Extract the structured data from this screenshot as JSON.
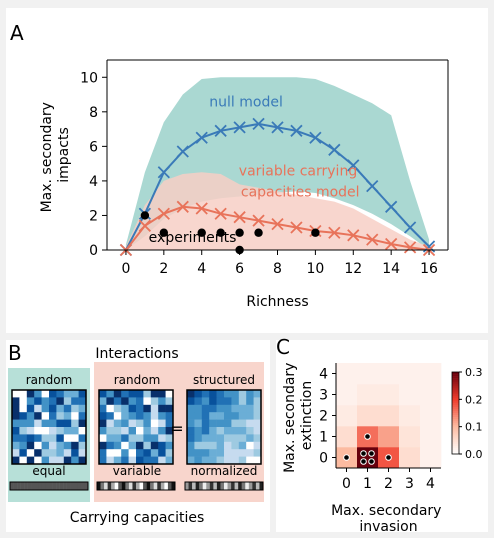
{
  "panels": {
    "a": "A",
    "b": "B",
    "c": "C"
  },
  "chart_data": [
    {
      "type": "line",
      "panel": "A",
      "xlabel": "Richness",
      "ylabel": "Max. secondary impacts",
      "ylabel_lines": [
        "Max. secondary",
        "impacts"
      ],
      "xlim": [
        -1,
        17
      ],
      "ylim": [
        0,
        11
      ],
      "xticks": [
        0,
        2,
        4,
        6,
        8,
        10,
        12,
        14,
        16
      ],
      "yticks": [
        0,
        2,
        4,
        6,
        8,
        10
      ],
      "grid": false,
      "series": [
        {
          "name": "null model",
          "color": "#3a7ab8",
          "band_color": "#aad8d2",
          "x": [
            0,
            1,
            2,
            3,
            4,
            5,
            6,
            7,
            8,
            9,
            10,
            11,
            12,
            13,
            14,
            15,
            16
          ],
          "mean": [
            0,
            2.1,
            4.5,
            5.7,
            6.5,
            6.9,
            7.1,
            7.3,
            7.1,
            6.9,
            6.5,
            5.8,
            4.9,
            3.7,
            2.5,
            1.3,
            0.2
          ],
          "lower": [
            0,
            0.8,
            1.8,
            2.4,
            2.8,
            3.0,
            3.1,
            3.2,
            3.3,
            3.4,
            3.3,
            3.0,
            2.6,
            2.1,
            1.5,
            0.8,
            0
          ],
          "upper": [
            0.3,
            4.5,
            7.4,
            9.0,
            9.9,
            10.0,
            10.0,
            10.0,
            10.0,
            10.0,
            9.9,
            9.5,
            9.0,
            8.5,
            7.8,
            4.0,
            0.6
          ]
        },
        {
          "name": "variable carrying capacities model",
          "name_lines": [
            "variable carrying",
            "capacities model"
          ],
          "color": "#e8735a",
          "band_color": "#f7cfc6",
          "x": [
            0,
            1,
            2,
            3,
            4,
            5,
            6,
            7,
            8,
            9,
            10,
            11,
            12,
            13,
            14,
            15,
            16
          ],
          "mean": [
            0,
            1.4,
            2.1,
            2.5,
            2.4,
            2.1,
            1.9,
            1.7,
            1.5,
            1.3,
            1.1,
            1.0,
            0.85,
            0.6,
            0.35,
            0.15,
            0
          ],
          "lower": [
            0,
            0,
            0,
            0,
            0,
            0,
            0,
            0,
            0,
            0,
            0,
            0,
            0,
            0,
            0,
            0,
            0
          ],
          "upper": [
            0.2,
            2.6,
            4.0,
            4.4,
            4.5,
            4.4,
            3.8,
            3.6,
            3.4,
            3.2,
            3.0,
            2.8,
            2.4,
            1.8,
            1.2,
            0.6,
            0.2
          ]
        },
        {
          "name": "experiments",
          "type": "scatter",
          "color": "#000000",
          "x": [
            1,
            2,
            4,
            5,
            6,
            7,
            10,
            6
          ],
          "y": [
            2,
            1,
            1,
            1,
            1,
            1,
            1,
            0
          ]
        }
      ]
    },
    {
      "type": "heatmap",
      "panel": "C",
      "xlabel": "Max. secondary invasion",
      "xlabel_lines": [
        "Max. secondary",
        "invasion"
      ],
      "ylabel": "Max. secondary extinction",
      "ylabel_lines": [
        "Max. secondary",
        "extinction"
      ],
      "x": [
        0,
        1,
        2,
        3,
        4
      ],
      "y": [
        0,
        1,
        2,
        3,
        4
      ],
      "values": [
        [
          0.1,
          0.3,
          0.18,
          0.05,
          0.02
        ],
        [
          0.05,
          0.16,
          0.12,
          0.04,
          0.02
        ],
        [
          0.03,
          0.05,
          0.05,
          0.03,
          0.02
        ],
        [
          0.02,
          0.03,
          0.03,
          0.02,
          0.02
        ],
        [
          0.02,
          0.02,
          0.02,
          0.02,
          0.02
        ]
      ],
      "colorbar": {
        "min": 0.0,
        "max": 0.3,
        "ticks": [
          0.0,
          0.1,
          0.2,
          0.3
        ]
      },
      "experiment_points": [
        {
          "x": 0,
          "y": 0
        },
        {
          "x": 1,
          "y": 1
        },
        {
          "x": 1,
          "y": 0
        },
        {
          "x": 1,
          "y": 0
        },
        {
          "x": 1,
          "y": 0
        },
        {
          "x": 1,
          "y": 0
        },
        {
          "x": 2,
          "y": 0
        }
      ]
    }
  ],
  "panel_b": {
    "interactions_title": "Interactions",
    "carrying_title": "Carrying capacities",
    "matrices": [
      {
        "top_label": "random",
        "bottom_label": "equal",
        "kind": "random",
        "bg": "#b7e0d8"
      },
      {
        "top_label": "random",
        "bottom_label": "variable",
        "kind": "random",
        "bg": "#f8d5cc"
      },
      {
        "top_label": "structured",
        "bottom_label": "normalized",
        "kind": "structured",
        "bg": "#f8d5cc"
      }
    ],
    "equals_sign": "="
  }
}
